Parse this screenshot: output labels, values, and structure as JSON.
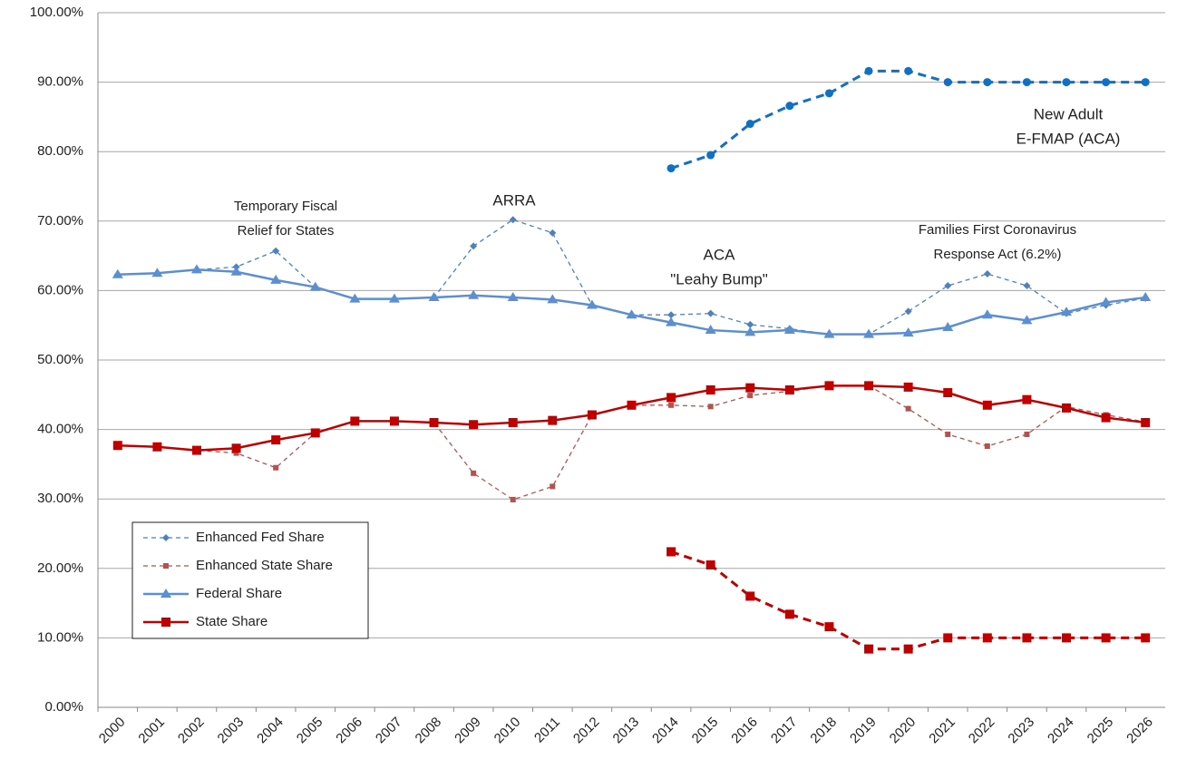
{
  "chart_data": {
    "type": "line",
    "categories": [
      "2000",
      "2001",
      "2002",
      "2003",
      "2004",
      "2005",
      "2006",
      "2007",
      "2008",
      "2009",
      "2010",
      "2011",
      "2012",
      "2013",
      "2014",
      "2015",
      "2016",
      "2017",
      "2018",
      "2019",
      "2020",
      "2021",
      "2022",
      "2023",
      "2024",
      "2025",
      "2026"
    ],
    "ylim": [
      0,
      100
    ],
    "yticks": [
      {
        "value": 0,
        "label": "0.00%"
      },
      {
        "value": 10,
        "label": "10.00%"
      },
      {
        "value": 20,
        "label": "20.00%"
      },
      {
        "value": 30,
        "label": "30.00%"
      },
      {
        "value": 40,
        "label": "40.00%"
      },
      {
        "value": 50,
        "label": "50.00%"
      },
      {
        "value": 60,
        "label": "60.00%"
      },
      {
        "value": 70,
        "label": "70.00%"
      },
      {
        "value": 80,
        "label": "80.00%"
      },
      {
        "value": 90,
        "label": "90.00%"
      },
      {
        "value": 100,
        "label": "100.00%"
      }
    ],
    "grid": true,
    "legend": "lower-left",
    "series": [
      {
        "name": "Enhanced Fed Share",
        "color": "#4f81bd",
        "dash": true,
        "marker": "diamond",
        "values": [
          62.3,
          62.5,
          63.0,
          63.4,
          65.7,
          60.5,
          58.8,
          58.8,
          59.0,
          66.4,
          70.2,
          68.3,
          57.9,
          56.5,
          56.5,
          56.7,
          55.1,
          54.5,
          53.7,
          53.7,
          57.0,
          60.7,
          62.4,
          60.7,
          56.7,
          57.9,
          58.9
        ]
      },
      {
        "name": "Enhanced State Share",
        "color": "#b4524f",
        "dash": true,
        "marker": "smallsquare",
        "values": [
          37.7,
          37.5,
          37.0,
          36.6,
          34.5,
          39.5,
          41.2,
          41.2,
          41.0,
          33.7,
          29.9,
          31.8,
          42.1,
          43.5,
          43.5,
          43.3,
          44.9,
          45.5,
          46.3,
          46.3,
          43.0,
          39.3,
          37.6,
          39.3,
          43.3,
          42.1,
          41.1
        ]
      },
      {
        "name": "Federal Share",
        "color": "#5b8fd1",
        "dash": false,
        "marker": "triangle",
        "values": [
          62.3,
          62.5,
          63.0,
          62.7,
          61.5,
          60.5,
          58.8,
          58.8,
          59.0,
          59.3,
          59.0,
          58.7,
          57.9,
          56.5,
          55.4,
          54.3,
          54.0,
          54.3,
          53.7,
          53.7,
          53.9,
          54.7,
          56.5,
          55.7,
          56.9,
          58.3,
          59.0
        ]
      },
      {
        "name": "State Share",
        "color": "#c00000",
        "dash": false,
        "marker": "square",
        "values": [
          37.7,
          37.5,
          37.0,
          37.3,
          38.5,
          39.5,
          41.2,
          41.2,
          41.0,
          40.7,
          41.0,
          41.3,
          42.1,
          43.5,
          44.6,
          45.7,
          46.0,
          45.7,
          46.3,
          46.3,
          46.1,
          45.3,
          43.5,
          44.3,
          43.1,
          41.7,
          41.0
        ]
      },
      {
        "color": "#0f70c4",
        "dash": true,
        "bold": true,
        "marker": "circle",
        "values": [
          null,
          null,
          null,
          null,
          null,
          null,
          null,
          null,
          null,
          null,
          null,
          null,
          null,
          null,
          77.6,
          79.5,
          84.0,
          86.6,
          88.4,
          91.6,
          91.6,
          90.0,
          90.0,
          90.0,
          90.0,
          90.0,
          90.0
        ]
      },
      {
        "color": "#c00000",
        "dash": true,
        "bold": true,
        "marker": "square",
        "values": [
          null,
          null,
          null,
          null,
          null,
          null,
          null,
          null,
          null,
          null,
          null,
          null,
          null,
          null,
          22.4,
          20.5,
          16.0,
          13.4,
          11.6,
          8.4,
          8.4,
          10.0,
          10.0,
          10.0,
          10.0,
          10.0,
          10.0
        ]
      }
    ],
    "annotations": [
      {
        "lines": [
          "Temporary Fiscal",
          "Relief for States"
        ]
      },
      {
        "lines": [
          "ARRA"
        ]
      },
      {
        "lines": [
          "ACA",
          "\"Leahy Bump\""
        ]
      },
      {
        "lines": [
          "Families First Coronavirus",
          "Response Act (6.2%)"
        ]
      },
      {
        "lines": [
          "New Adult",
          "E-FMAP (ACA)"
        ]
      }
    ]
  }
}
